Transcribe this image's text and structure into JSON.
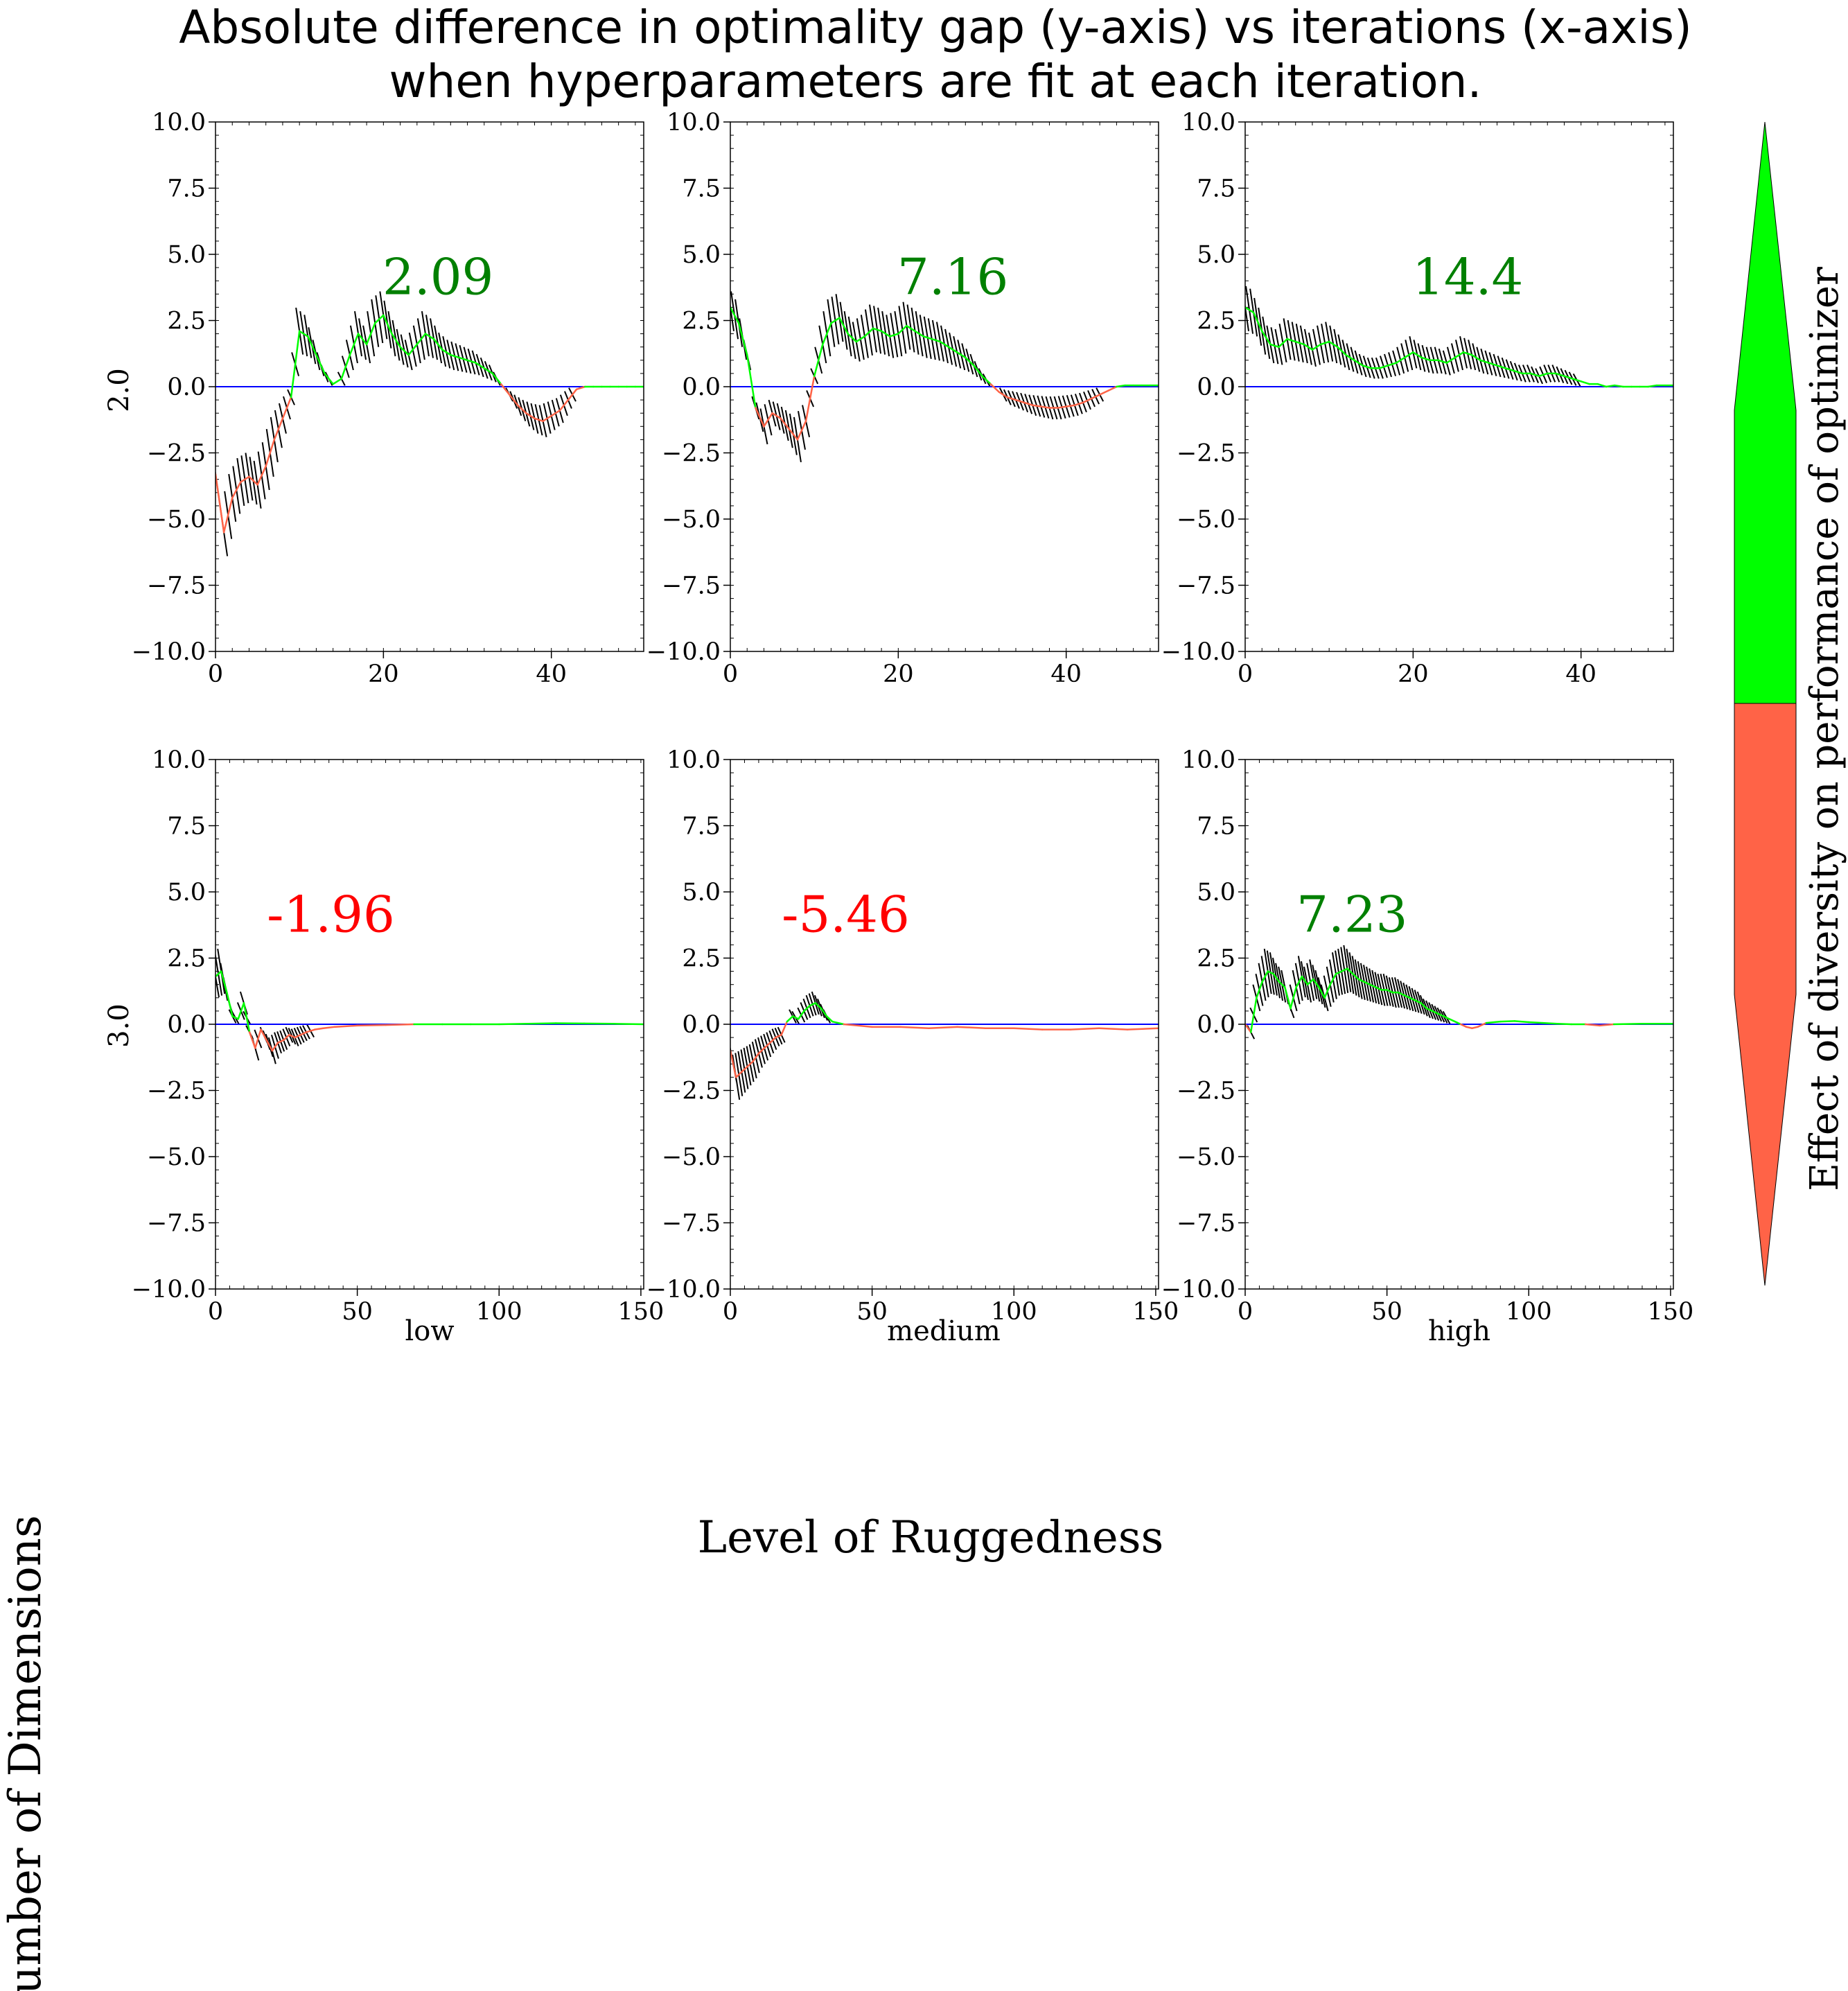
{
  "title_lines": [
    "Absolute difference in optimality gap (y-axis) vs iterations (x-axis)",
    "when hyperparameters are fit at each iteration."
  ],
  "xlabel": "Level of Ruggedness",
  "ylabel": "Number of Dimensions",
  "colorbar_label": "Effect of diversity on performance of optimizer",
  "column_labels": [
    "low",
    "medium",
    "high"
  ],
  "row_labels": [
    "2.0",
    "3.0"
  ],
  "colors": {
    "positive_line": "#00ff00",
    "negative_line": "#ff6347",
    "zero_line": "#0000ff",
    "hatch": "#000000",
    "positive_annotation": "#008000",
    "negative_annotation": "#ff0000",
    "colorbar_positive": "#00ff00",
    "colorbar_negative": "#ff6347"
  },
  "chart_data": [
    {
      "type": "line",
      "row": 0,
      "col": 0,
      "ruggedness": "low",
      "dimensions": "2.0",
      "xlim": [
        0,
        51
      ],
      "ylim": [
        -10,
        10
      ],
      "xticks": [
        0,
        20,
        40
      ],
      "yticks": [
        -10,
        -7.5,
        -5,
        -2.5,
        0,
        2.5,
        5,
        7.5,
        10
      ],
      "annotation": "2.09",
      "annotation_sign": "positive",
      "points": [
        [
          0,
          -3.3
        ],
        [
          1,
          -5.5
        ],
        [
          2,
          -4.2
        ],
        [
          3,
          -3.6
        ],
        [
          4,
          -3.4
        ],
        [
          5,
          -3.7
        ],
        [
          6,
          -3.0
        ],
        [
          7,
          -2.0
        ],
        [
          8,
          -1.2
        ],
        [
          9,
          -0.4
        ],
        [
          10,
          2.1
        ],
        [
          11,
          1.9
        ],
        [
          12,
          1.2
        ],
        [
          13,
          0.5
        ],
        [
          14,
          0.1
        ],
        [
          15,
          0.3
        ],
        [
          16,
          1.2
        ],
        [
          17,
          2.0
        ],
        [
          18,
          1.6
        ],
        [
          19,
          2.4
        ],
        [
          20,
          2.7
        ],
        [
          21,
          2.0
        ],
        [
          22,
          1.5
        ],
        [
          23,
          1.2
        ],
        [
          24,
          1.6
        ],
        [
          25,
          2.0
        ],
        [
          26,
          1.8
        ],
        [
          27,
          1.4
        ],
        [
          28,
          1.2
        ],
        [
          29,
          1.1
        ],
        [
          30,
          1.0
        ],
        [
          31,
          0.9
        ],
        [
          32,
          0.7
        ],
        [
          33,
          0.5
        ],
        [
          34,
          0.1
        ],
        [
          35,
          -0.3
        ],
        [
          36,
          -0.7
        ],
        [
          37,
          -1.0
        ],
        [
          38,
          -1.2
        ],
        [
          39,
          -1.3
        ],
        [
          40,
          -1.1
        ],
        [
          41,
          -0.9
        ],
        [
          42,
          -0.5
        ],
        [
          43,
          -0.1
        ],
        [
          44,
          0
        ],
        [
          45,
          0
        ],
        [
          46,
          0
        ],
        [
          47,
          0
        ],
        [
          48,
          0
        ],
        [
          49,
          0
        ],
        [
          50,
          0
        ],
        [
          51,
          0
        ]
      ]
    },
    {
      "type": "line",
      "row": 0,
      "col": 1,
      "ruggedness": "medium",
      "dimensions": "2.0",
      "xlim": [
        0,
        51
      ],
      "ylim": [
        -10,
        10
      ],
      "xticks": [
        0,
        20,
        40
      ],
      "yticks": [
        -10,
        -7.5,
        -5,
        -2.5,
        0,
        2.5,
        5,
        7.5,
        10
      ],
      "annotation": "7.16",
      "annotation_sign": "positive",
      "points": [
        [
          0,
          3.0
        ],
        [
          1,
          2.4
        ],
        [
          2,
          1.2
        ],
        [
          3,
          -0.8
        ],
        [
          4,
          -1.5
        ],
        [
          5,
          -1.0
        ],
        [
          6,
          -1.2
        ],
        [
          7,
          -1.6
        ],
        [
          8,
          -2.0
        ],
        [
          9,
          -1.3
        ],
        [
          10,
          0.4
        ],
        [
          11,
          1.6
        ],
        [
          12,
          2.4
        ],
        [
          13,
          2.6
        ],
        [
          14,
          2.0
        ],
        [
          15,
          1.7
        ],
        [
          16,
          1.9
        ],
        [
          17,
          2.2
        ],
        [
          18,
          2.1
        ],
        [
          19,
          1.9
        ],
        [
          20,
          2.0
        ],
        [
          21,
          2.3
        ],
        [
          22,
          2.1
        ],
        [
          23,
          1.9
        ],
        [
          24,
          1.8
        ],
        [
          25,
          1.7
        ],
        [
          26,
          1.5
        ],
        [
          27,
          1.3
        ],
        [
          28,
          1.1
        ],
        [
          29,
          0.8
        ],
        [
          30,
          0.4
        ],
        [
          31,
          0.1
        ],
        [
          32,
          -0.2
        ],
        [
          33,
          -0.4
        ],
        [
          34,
          -0.5
        ],
        [
          35,
          -0.6
        ],
        [
          36,
          -0.7
        ],
        [
          37,
          -0.75
        ],
        [
          38,
          -0.8
        ],
        [
          39,
          -0.8
        ],
        [
          40,
          -0.75
        ],
        [
          41,
          -0.7
        ],
        [
          42,
          -0.6
        ],
        [
          43,
          -0.45
        ],
        [
          44,
          -0.3
        ],
        [
          45,
          -0.15
        ],
        [
          46,
          0
        ],
        [
          47,
          0.05
        ],
        [
          48,
          0.05
        ],
        [
          49,
          0.05
        ],
        [
          50,
          0.05
        ],
        [
          51,
          0.05
        ]
      ]
    },
    {
      "type": "line",
      "row": 0,
      "col": 2,
      "ruggedness": "high",
      "dimensions": "2.0",
      "xlim": [
        0,
        51
      ],
      "ylim": [
        -10,
        10
      ],
      "xticks": [
        0,
        20,
        40
      ],
      "yticks": [
        -10,
        -7.5,
        -5,
        -2.5,
        0,
        2.5,
        5,
        7.5,
        10
      ],
      "annotation": "14.4",
      "annotation_sign": "positive",
      "points": [
        [
          0,
          3.0
        ],
        [
          1,
          2.8
        ],
        [
          2,
          2.1
        ],
        [
          3,
          1.6
        ],
        [
          4,
          1.5
        ],
        [
          5,
          1.8
        ],
        [
          6,
          1.7
        ],
        [
          7,
          1.6
        ],
        [
          8,
          1.4
        ],
        [
          9,
          1.6
        ],
        [
          10,
          1.7
        ],
        [
          11,
          1.5
        ],
        [
          12,
          1.2
        ],
        [
          13,
          1.0
        ],
        [
          14,
          0.8
        ],
        [
          15,
          0.7
        ],
        [
          16,
          0.7
        ],
        [
          17,
          0.8
        ],
        [
          18,
          0.9
        ],
        [
          19,
          1.1
        ],
        [
          20,
          1.3
        ],
        [
          21,
          1.1
        ],
        [
          22,
          1.0
        ],
        [
          23,
          1.0
        ],
        [
          24,
          0.9
        ],
        [
          25,
          1.1
        ],
        [
          26,
          1.3
        ],
        [
          27,
          1.2
        ],
        [
          28,
          1.0
        ],
        [
          29,
          0.9
        ],
        [
          30,
          0.8
        ],
        [
          31,
          0.7
        ],
        [
          32,
          0.6
        ],
        [
          33,
          0.5
        ],
        [
          34,
          0.5
        ],
        [
          35,
          0.4
        ],
        [
          36,
          0.5
        ],
        [
          37,
          0.5
        ],
        [
          38,
          0.4
        ],
        [
          39,
          0.3
        ],
        [
          40,
          0.2
        ],
        [
          41,
          0.1
        ],
        [
          42,
          0.1
        ],
        [
          43,
          0
        ],
        [
          44,
          0.05
        ],
        [
          45,
          0
        ],
        [
          46,
          0
        ],
        [
          47,
          0
        ],
        [
          48,
          0
        ],
        [
          49,
          0.05
        ],
        [
          50,
          0.05
        ],
        [
          51,
          0.05
        ]
      ]
    },
    {
      "type": "line",
      "row": 1,
      "col": 0,
      "ruggedness": "low",
      "dimensions": "3.0",
      "xlim": [
        0,
        151
      ],
      "ylim": [
        -10,
        10
      ],
      "xticks": [
        0,
        50,
        100,
        150
      ],
      "yticks": [
        -10,
        -7.5,
        -5,
        -2.5,
        0,
        2.5,
        5,
        7.5,
        10
      ],
      "annotation": "-1.96",
      "annotation_sign": "negative",
      "points": [
        [
          0,
          1.8
        ],
        [
          2,
          2.0
        ],
        [
          4,
          1.2
        ],
        [
          6,
          0.3
        ],
        [
          8,
          0.2
        ],
        [
          10,
          0.8
        ],
        [
          12,
          -0.3
        ],
        [
          14,
          -0.9
        ],
        [
          16,
          -0.2
        ],
        [
          18,
          -0.6
        ],
        [
          20,
          -1.0
        ],
        [
          22,
          -0.7
        ],
        [
          24,
          -0.6
        ],
        [
          26,
          -0.4
        ],
        [
          28,
          -0.5
        ],
        [
          30,
          -0.4
        ],
        [
          32,
          -0.3
        ],
        [
          35,
          -0.2
        ],
        [
          38,
          -0.15
        ],
        [
          42,
          -0.1
        ],
        [
          50,
          -0.05
        ],
        [
          60,
          -0.03
        ],
        [
          70,
          0
        ],
        [
          80,
          0
        ],
        [
          90,
          0
        ],
        [
          100,
          0
        ],
        [
          110,
          0.02
        ],
        [
          120,
          0.04
        ],
        [
          130,
          0.03
        ],
        [
          140,
          0.02
        ],
        [
          151,
          0
        ]
      ]
    },
    {
      "type": "line",
      "row": 1,
      "col": 1,
      "ruggedness": "medium",
      "dimensions": "3.0",
      "xlim": [
        0,
        151
      ],
      "ylim": [
        -10,
        10
      ],
      "xticks": [
        0,
        50,
        100,
        150
      ],
      "yticks": [
        -10,
        -7.5,
        -5,
        -2.5,
        0,
        2.5,
        5,
        7.5,
        10
      ],
      "annotation": "-5.46",
      "annotation_sign": "negative",
      "points": [
        [
          0,
          -1.0
        ],
        [
          2,
          -2.0
        ],
        [
          4,
          -1.8
        ],
        [
          6,
          -1.6
        ],
        [
          8,
          -1.4
        ],
        [
          10,
          -1.1
        ],
        [
          12,
          -0.9
        ],
        [
          14,
          -0.7
        ],
        [
          16,
          -0.5
        ],
        [
          18,
          -0.4
        ],
        [
          20,
          0.1
        ],
        [
          22,
          0.3
        ],
        [
          24,
          0.2
        ],
        [
          26,
          0.5
        ],
        [
          28,
          0.7
        ],
        [
          30,
          0.8
        ],
        [
          32,
          0.6
        ],
        [
          34,
          0.3
        ],
        [
          36,
          0.1
        ],
        [
          40,
          0
        ],
        [
          45,
          -0.05
        ],
        [
          50,
          -0.1
        ],
        [
          60,
          -0.1
        ],
        [
          70,
          -0.15
        ],
        [
          80,
          -0.1
        ],
        [
          90,
          -0.15
        ],
        [
          100,
          -0.15
        ],
        [
          110,
          -0.2
        ],
        [
          120,
          -0.2
        ],
        [
          130,
          -0.15
        ],
        [
          140,
          -0.2
        ],
        [
          151,
          -0.15
        ]
      ]
    },
    {
      "type": "line",
      "row": 1,
      "col": 2,
      "ruggedness": "high",
      "dimensions": "3.0",
      "xlim": [
        0,
        151
      ],
      "ylim": [
        -10,
        10
      ],
      "xticks": [
        0,
        50,
        100,
        150
      ],
      "yticks": [
        -10,
        -7.5,
        -5,
        -2.5,
        0,
        2.5,
        5,
        7.5,
        10
      ],
      "annotation": "7.23",
      "annotation_sign": "positive",
      "points": [
        [
          0,
          0
        ],
        [
          2,
          -0.3
        ],
        [
          4,
          1.0
        ],
        [
          6,
          1.6
        ],
        [
          8,
          2.0
        ],
        [
          10,
          1.9
        ],
        [
          12,
          1.6
        ],
        [
          14,
          1.4
        ],
        [
          16,
          0.6
        ],
        [
          18,
          1.4
        ],
        [
          20,
          1.8
        ],
        [
          22,
          1.5
        ],
        [
          24,
          1.7
        ],
        [
          26,
          1.4
        ],
        [
          28,
          1.0
        ],
        [
          30,
          1.5
        ],
        [
          32,
          1.9
        ],
        [
          34,
          2.0
        ],
        [
          36,
          2.1
        ],
        [
          38,
          1.9
        ],
        [
          40,
          1.7
        ],
        [
          42,
          1.6
        ],
        [
          44,
          1.5
        ],
        [
          46,
          1.4
        ],
        [
          48,
          1.3
        ],
        [
          50,
          1.3
        ],
        [
          52,
          1.2
        ],
        [
          54,
          1.2
        ],
        [
          56,
          1.1
        ],
        [
          58,
          1.0
        ],
        [
          60,
          0.9
        ],
        [
          62,
          0.8
        ],
        [
          64,
          0.6
        ],
        [
          66,
          0.5
        ],
        [
          68,
          0.4
        ],
        [
          70,
          0.3
        ],
        [
          72,
          0.2
        ],
        [
          74,
          0.1
        ],
        [
          76,
          0
        ],
        [
          78,
          -0.1
        ],
        [
          80,
          -0.15
        ],
        [
          82,
          -0.1
        ],
        [
          85,
          0.05
        ],
        [
          90,
          0.1
        ],
        [
          95,
          0.12
        ],
        [
          100,
          0.08
        ],
        [
          105,
          0.05
        ],
        [
          110,
          0.02
        ],
        [
          115,
          0
        ],
        [
          120,
          0
        ],
        [
          125,
          -0.05
        ],
        [
          130,
          0
        ],
        [
          140,
          0.02
        ],
        [
          151,
          0.02
        ]
      ]
    }
  ]
}
